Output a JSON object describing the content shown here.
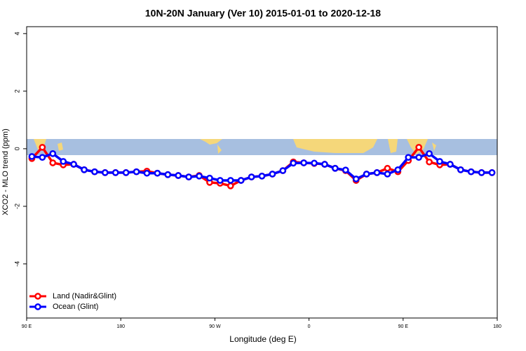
{
  "chart_data": {
    "type": "line",
    "title": "10N-20N January (Ver 10)   2015-01-01 to 2020-12-18",
    "x_label": "Longitude (deg E)",
    "y_label": "XCO2 - MLO trend (ppm)",
    "x": [
      95,
      105,
      115,
      125,
      135,
      145,
      155,
      165,
      175,
      185,
      195,
      205,
      215,
      225,
      235,
      245,
      255,
      265,
      275,
      285,
      295,
      305,
      315,
      325,
      335,
      345,
      355,
      365,
      375,
      385,
      395,
      405,
      415,
      425,
      435,
      445,
      455,
      465,
      475,
      485,
      495,
      505,
      515,
      525,
      535
    ],
    "series": [
      {
        "name": "Land (Nadir&Glint)",
        "color": "#ff0000",
        "values": [
          -0.34,
          0.05,
          -0.49,
          -0.56,
          -0.54,
          -0.73,
          -0.8,
          -0.83,
          -0.83,
          -0.83,
          -0.8,
          -0.78,
          -0.85,
          -0.9,
          -0.93,
          -0.98,
          -0.93,
          -1.17,
          -1.2,
          -1.29,
          -1.1,
          -0.98,
          -0.95,
          -0.88,
          -0.76,
          -0.46,
          -0.49,
          -0.51,
          -0.54,
          -0.68,
          -0.76,
          -1.1,
          -0.88,
          -0.83,
          -0.68,
          -0.8,
          -0.41,
          0.05,
          -0.46,
          -0.56,
          -0.54,
          -0.73,
          -0.8,
          -0.83,
          -0.83
        ]
      },
      {
        "name": "Ocean (Glint)",
        "color": "#0000ff",
        "values": [
          -0.27,
          -0.3,
          -0.17,
          -0.44,
          -0.54,
          -0.73,
          -0.8,
          -0.83,
          -0.83,
          -0.83,
          -0.8,
          -0.85,
          -0.85,
          -0.9,
          -0.93,
          -0.98,
          -0.95,
          -1.02,
          -1.1,
          -1.1,
          -1.1,
          -0.98,
          -0.95,
          -0.88,
          -0.76,
          -0.5,
          -0.49,
          -0.5,
          -0.54,
          -0.68,
          -0.74,
          -1.05,
          -0.88,
          -0.83,
          -0.88,
          -0.73,
          -0.3,
          -0.3,
          -0.17,
          -0.44,
          -0.54,
          -0.73,
          -0.8,
          -0.83,
          -0.83
        ]
      }
    ],
    "xlim": [
      90,
      540
    ],
    "xticks": [
      {
        "value": 90,
        "label": "90 E"
      },
      {
        "value": 180,
        "label": "180"
      },
      {
        "value": 270,
        "label": "90 W"
      },
      {
        "value": 360,
        "label": "0"
      },
      {
        "value": 450,
        "label": "90 E"
      },
      {
        "value": 540,
        "label": "180"
      }
    ],
    "ylim": [
      -5.88,
      4.24
    ],
    "yticks": [
      -4,
      -2,
      0,
      2,
      4
    ],
    "legend": "bottom-left"
  }
}
